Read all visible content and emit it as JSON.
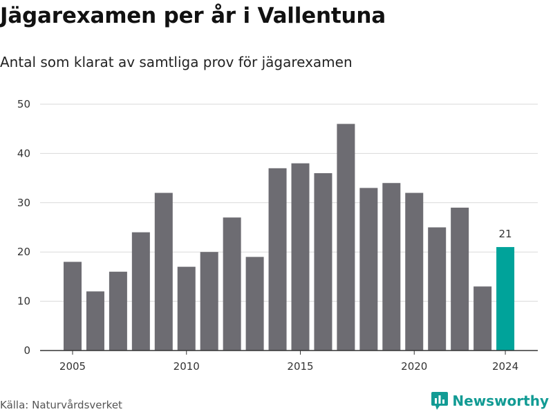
{
  "title": "Jägarexamen per år i Vallentuna",
  "subtitle": "Antal som klarat av samtliga prov för jägarexamen",
  "source": "Källa: Naturvårdsverket",
  "brand": {
    "name": "Newsworthy",
    "icon": "newsworthy-logo-icon",
    "color": "#129b94"
  },
  "colors": {
    "bar": "#6d6c72",
    "highlight": "#00a39a",
    "grid": "#d9d9d9",
    "axis": "#333333"
  },
  "chart_data": {
    "type": "bar",
    "x": [
      2005,
      2006,
      2007,
      2008,
      2009,
      2010,
      2011,
      2012,
      2013,
      2014,
      2015,
      2016,
      2017,
      2018,
      2019,
      2020,
      2021,
      2022,
      2023,
      2024
    ],
    "values": [
      18,
      12,
      16,
      24,
      32,
      17,
      20,
      27,
      19,
      37,
      38,
      36,
      46,
      33,
      34,
      32,
      25,
      29,
      13,
      21
    ],
    "ylim": [
      0,
      50
    ],
    "yticks": [
      0,
      10,
      20,
      30,
      40,
      50
    ],
    "xticks": [
      2005,
      2010,
      2015,
      2020,
      2024
    ],
    "highlight": {
      "x": 2024,
      "label": "21"
    },
    "grid": true,
    "xlabel": "",
    "ylabel": ""
  }
}
